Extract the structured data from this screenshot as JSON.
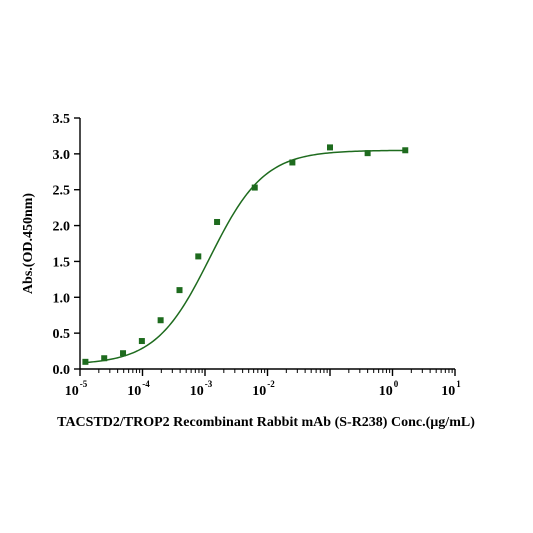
{
  "chart_data": {
    "type": "scatter",
    "title": "",
    "xlabel": "TACSTD2/TROP2 Recombinant Rabbit mAb (S-R238) Conc.(µg/mL)",
    "ylabel": "Abs.(OD.450nm)",
    "x_scale": "log",
    "xlim": [
      1e-05,
      10
    ],
    "ylim": [
      0.0,
      3.5
    ],
    "x_tick_labels": [
      {
        "base": "10",
        "exp": "-5"
      },
      {
        "base": "10",
        "exp": "-4"
      },
      {
        "base": "10",
        "exp": "-3"
      },
      {
        "base": "10",
        "exp": "-2"
      },
      {
        "base": "10",
        "exp": "0"
      },
      {
        "base": "10",
        "exp": "1"
      }
    ],
    "x_tick_values": [
      1e-05,
      0.0001,
      0.001,
      0.01,
      1,
      10
    ],
    "y_tick_labels": [
      "0.0",
      "0.5",
      "1.0",
      "1.5",
      "2.0",
      "2.5",
      "3.0",
      "3.5"
    ],
    "y_tick_values": [
      0.0,
      0.5,
      1.0,
      1.5,
      2.0,
      2.5,
      3.0,
      3.5
    ],
    "grid": false,
    "legend": "none",
    "colors": {
      "series": "#1e6b1e",
      "axis": "#000000"
    },
    "points": [
      {
        "x": 1.22e-05,
        "y": 0.1
      },
      {
        "x": 2.44e-05,
        "y": 0.15
      },
      {
        "x": 4.88e-05,
        "y": 0.22
      },
      {
        "x": 9.77e-05,
        "y": 0.39
      },
      {
        "x": 0.000195,
        "y": 0.68
      },
      {
        "x": 0.000391,
        "y": 1.1
      },
      {
        "x": 0.000781,
        "y": 1.57
      },
      {
        "x": 0.00156,
        "y": 2.05
      },
      {
        "x": 0.00625,
        "y": 2.53
      },
      {
        "x": 0.025,
        "y": 2.88
      },
      {
        "x": 0.1,
        "y": 3.09
      },
      {
        "x": 0.4,
        "y": 3.01
      },
      {
        "x": 1.6,
        "y": 3.05
      }
    ],
    "fit": {
      "model": "4PL",
      "bottom": 0.06,
      "top": 3.05,
      "ec50": 0.0012,
      "hill": 1.0
    }
  }
}
